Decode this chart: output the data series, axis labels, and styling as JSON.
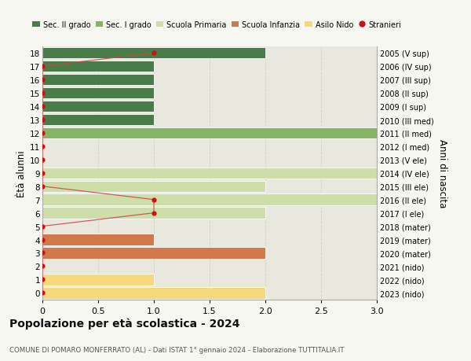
{
  "ages": [
    18,
    17,
    16,
    15,
    14,
    13,
    12,
    11,
    10,
    9,
    8,
    7,
    6,
    5,
    4,
    3,
    2,
    1,
    0
  ],
  "right_labels": [
    "2005 (V sup)",
    "2006 (IV sup)",
    "2007 (III sup)",
    "2008 (II sup)",
    "2009 (I sup)",
    "2010 (III med)",
    "2011 (II med)",
    "2012 (I med)",
    "2013 (V ele)",
    "2014 (IV ele)",
    "2015 (III ele)",
    "2016 (II ele)",
    "2017 (I ele)",
    "2018 (mater)",
    "2019 (mater)",
    "2020 (mater)",
    "2021 (nido)",
    "2022 (nido)",
    "2023 (nido)"
  ],
  "bar_values": [
    2,
    1,
    1,
    1,
    1,
    1,
    3.2,
    0,
    0,
    3.2,
    2,
    3.2,
    2,
    0,
    1,
    2,
    0,
    1,
    2
  ],
  "bar_colors": [
    "#4a7c4a",
    "#4a7c4a",
    "#4a7c4a",
    "#4a7c4a",
    "#4a7c4a",
    "#4a7c4a",
    "#85b565",
    "#85b565",
    "#85b565",
    "#cddea8",
    "#cddea8",
    "#cddea8",
    "#cddea8",
    "#d2784a",
    "#d2784a",
    "#d2784a",
    "#f5d97a",
    "#f5d97a",
    "#f5d97a"
  ],
  "stranieri_x": [
    1,
    0,
    0,
    0,
    0,
    0,
    0,
    0,
    0,
    0,
    0,
    1,
    1,
    0,
    0,
    0,
    0,
    0,
    0
  ],
  "background_color": "#f7f7f2",
  "plot_bg_color": "#ededе5",
  "grid_color": "#ccccbb",
  "title": "Popolazione per età scolastica - 2024",
  "subtitle": "COMUNE DI POMARO MONFERRATO (AL) - Dati ISTAT 1° gennaio 2024 - Elaborazione TUTTITALIA.IT",
  "ylabel_left": "Ètà alunni",
  "ylabel_right": "Anni di nascita",
  "legend_entries": [
    "Sec. II grado",
    "Sec. I grado",
    "Scuola Primaria",
    "Scuola Infanzia",
    "Asilo Nido",
    "Stranieri"
  ],
  "legend_colors": [
    "#4a7c4a",
    "#85b565",
    "#cddea8",
    "#d2784a",
    "#f5d97a",
    "#cc1111"
  ],
  "xlim": [
    0,
    3.0
  ],
  "bar_height": 0.85,
  "stranieri_color": "#cc1111",
  "line_color": "#cc4444"
}
